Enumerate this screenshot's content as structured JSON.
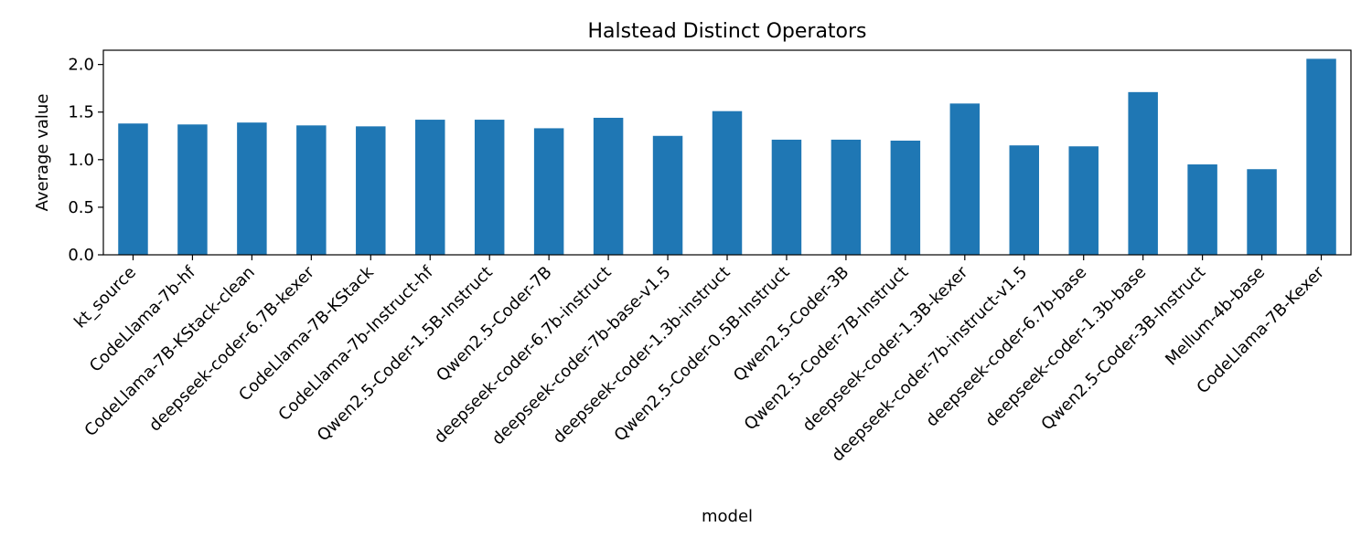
{
  "chart_data": {
    "type": "bar",
    "title": "Halstead Distinct Operators",
    "xlabel": "model",
    "ylabel": "Average value",
    "ylim": [
      0,
      2.15
    ],
    "yticks": [
      0.0,
      0.5,
      1.0,
      1.5,
      2.0
    ],
    "ytick_labels": [
      "0.0",
      "0.5",
      "1.0",
      "1.5",
      "2.0"
    ],
    "grid": false,
    "bar_color": "#1f77b4",
    "categories": [
      "kt_source",
      "CodeLlama-7b-hf",
      "CodeLlama-7B-KStack-clean",
      "deepseek-coder-6.7B-kexer",
      "CodeLlama-7B-KStack",
      "CodeLlama-7b-Instruct-hf",
      "Qwen2.5-Coder-1.5B-Instruct",
      "Qwen2.5-Coder-7B",
      "deepseek-coder-6.7b-instruct",
      "deepseek-coder-7b-base-v1.5",
      "deepseek-coder-1.3b-instruct",
      "Qwen2.5-Coder-0.5B-Instruct",
      "Qwen2.5-Coder-3B",
      "Qwen2.5-Coder-7B-Instruct",
      "deepseek-coder-1.3B-kexer",
      "deepseek-coder-7b-instruct-v1.5",
      "deepseek-coder-6.7b-base",
      "deepseek-coder-1.3b-base",
      "Qwen2.5-Coder-3B-Instruct",
      "Mellum-4b-base",
      "CodeLlama-7B-Kexer"
    ],
    "values": [
      1.38,
      1.37,
      1.39,
      1.36,
      1.35,
      1.42,
      1.42,
      1.33,
      1.44,
      1.25,
      1.51,
      1.21,
      1.21,
      1.2,
      1.59,
      1.15,
      1.14,
      1.71,
      0.95,
      0.9,
      2.06
    ]
  }
}
